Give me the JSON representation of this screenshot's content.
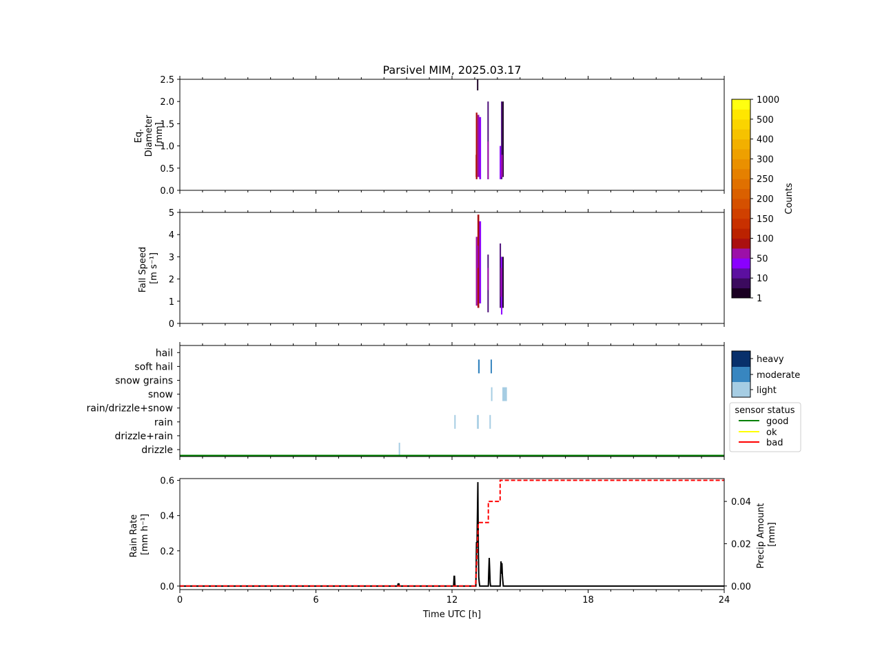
{
  "title": "Parsivel MIM, 2025.03.17",
  "xlabel": "Time UTC [h]",
  "x_ticks": [
    0,
    6,
    12,
    18,
    24
  ],
  "colors": {
    "ptype_light": "#a6cde3",
    "ptype_moderate": "#3886c0",
    "ptype_heavy": "#08306b",
    "status_good": "#008000",
    "status_ok": "#ffff00",
    "status_bad": "#ff0000",
    "rain_rate": "#000000",
    "precip_amount": "#ff0000"
  },
  "colorbar": {
    "label": "Counts",
    "ticks": [
      "1000",
      "500",
      "400",
      "300",
      "250",
      "200",
      "150",
      "100",
      "50",
      "10",
      "1"
    ],
    "colors": [
      "#1a0022",
      "#3b0a5e",
      "#5c0fa0",
      "#8a00ff",
      "#9c10a8",
      "#aa1010",
      "#bb2200",
      "#c83000",
      "#d04000",
      "#d55000",
      "#da6000",
      "#e07000",
      "#e58000",
      "#ea9000",
      "#eea000",
      "#f2b000",
      "#f6c200",
      "#fad400",
      "#ffe600",
      "#ffff10"
    ]
  },
  "ptype_legend": {
    "levels": [
      "heavy",
      "moderate",
      "light"
    ]
  },
  "status_legend": {
    "title": "sensor status",
    "items": [
      "good",
      "ok",
      "bad"
    ]
  },
  "chart_data": [
    {
      "type": "heatmap",
      "name": "diameter",
      "ylabel": [
        "Eq.",
        "Diameter",
        "[mm]"
      ],
      "xlim": [
        0,
        24
      ],
      "ylim": [
        0,
        2.5
      ],
      "y_ticks": [
        "0.0",
        "0.5",
        "1.0",
        "1.5",
        "2.0",
        "2.5"
      ],
      "y_tick_values": [
        0,
        0.5,
        1.0,
        1.5,
        2.0,
        2.5
      ],
      "columns": [
        {
          "t0": 13.05,
          "t1": 13.12,
          "y0": 0.25,
          "y1": 1.75,
          "level": 4
        },
        {
          "t0": 13.12,
          "t1": 13.2,
          "y0": 0.3,
          "y1": 1.7,
          "level": 3
        },
        {
          "t0": 13.2,
          "t1": 13.28,
          "y0": 0.25,
          "y1": 1.65,
          "level": 2
        },
        {
          "t0": 13.04,
          "t1": 13.08,
          "y0": 0.3,
          "y1": 0.8,
          "level": 4
        },
        {
          "t0": 13.1,
          "t1": 13.16,
          "y0": 2.25,
          "y1": 2.5,
          "level": 0
        },
        {
          "t0": 13.56,
          "t1": 13.62,
          "y0": 0.25,
          "y1": 2.0,
          "level": 1
        },
        {
          "t0": 13.56,
          "t1": 13.62,
          "y0": 0.25,
          "y1": 1.1,
          "level": 3
        },
        {
          "t0": 14.1,
          "t1": 14.16,
          "y0": 0.25,
          "y1": 1.0,
          "level": 2
        },
        {
          "t0": 14.16,
          "t1": 14.22,
          "y0": 0.25,
          "y1": 2.0,
          "level": 1
        },
        {
          "t0": 14.22,
          "t1": 14.28,
          "y0": 0.3,
          "y1": 2.0,
          "level": 0
        },
        {
          "t0": 14.16,
          "t1": 14.24,
          "y0": 0.3,
          "y1": 0.8,
          "level": 3
        }
      ]
    },
    {
      "type": "heatmap",
      "name": "fall-speed",
      "ylabel": [
        "Fall Speed",
        "[m s⁻¹]"
      ],
      "xlim": [
        0,
        24
      ],
      "ylim": [
        0,
        5
      ],
      "y_ticks": [
        "0",
        "1",
        "2",
        "3",
        "4",
        "5"
      ],
      "y_tick_values": [
        0,
        1,
        2,
        3,
        4,
        5
      ],
      "columns": [
        {
          "t0": 13.05,
          "t1": 13.12,
          "y0": 0.8,
          "y1": 3.9,
          "level": 3
        },
        {
          "t0": 13.12,
          "t1": 13.2,
          "y0": 0.7,
          "y1": 4.9,
          "level": 4
        },
        {
          "t0": 13.2,
          "t1": 13.28,
          "y0": 0.9,
          "y1": 4.6,
          "level": 2
        },
        {
          "t0": 13.08,
          "t1": 13.16,
          "y0": 2.5,
          "y1": 3.5,
          "level": 3
        },
        {
          "t0": 13.56,
          "t1": 13.62,
          "y0": 0.5,
          "y1": 3.1,
          "level": 1
        },
        {
          "t0": 13.56,
          "t1": 13.62,
          "y0": 1.5,
          "y1": 2.5,
          "level": 3
        },
        {
          "t0": 14.1,
          "t1": 14.16,
          "y0": 0.7,
          "y1": 3.6,
          "level": 1
        },
        {
          "t0": 14.16,
          "t1": 14.22,
          "y0": 0.4,
          "y1": 3.0,
          "level": 2
        },
        {
          "t0": 14.22,
          "t1": 14.28,
          "y0": 0.7,
          "y1": 3.0,
          "level": 0
        },
        {
          "t0": 14.14,
          "t1": 14.2,
          "y0": 1.2,
          "y1": 2.5,
          "level": 3
        }
      ]
    },
    {
      "type": "heatmap",
      "name": "precip-type",
      "categories": [
        "drizzle",
        "drizzle+rain",
        "rain",
        "rain/drizzle+snow",
        "snow",
        "snow grains",
        "soft hail",
        "hail"
      ],
      "xlim": [
        0,
        24
      ],
      "status_line": {
        "status": "good",
        "t0": 0,
        "t1": 24
      },
      "bars": [
        {
          "t": 9.65,
          "cat": "drizzle",
          "level": "light",
          "w": 0.05
        },
        {
          "t": 12.1,
          "cat": "rain",
          "level": "light",
          "w": 0.05
        },
        {
          "t": 13.1,
          "cat": "rain",
          "level": "light",
          "w": 0.08
        },
        {
          "t": 13.65,
          "cat": "rain",
          "level": "light",
          "w": 0.04
        },
        {
          "t": 13.15,
          "cat": "soft hail",
          "level": "moderate",
          "w": 0.07
        },
        {
          "t": 13.7,
          "cat": "soft hail",
          "level": "moderate",
          "w": 0.06
        },
        {
          "t": 13.72,
          "cat": "snow",
          "level": "light",
          "w": 0.06
        },
        {
          "t": 14.22,
          "cat": "snow",
          "level": "light",
          "w": 0.2
        }
      ]
    },
    {
      "type": "line",
      "name": "rain-rate",
      "ylabel": [
        "Rain Rate",
        "[mm h⁻¹]"
      ],
      "y2label": [
        "Precip Amount",
        "[mm]"
      ],
      "xlim": [
        0,
        24
      ],
      "ylim": [
        -0.02,
        0.61
      ],
      "y2lim": [
        -0.0017,
        0.0508
      ],
      "y_ticks": [
        "0.0",
        "0.2",
        "0.4",
        "0.6"
      ],
      "y_tick_values": [
        0,
        0.2,
        0.4,
        0.6
      ],
      "y2_ticks": [
        "0.00",
        "0.02",
        "0.04"
      ],
      "y2_tick_values": [
        0,
        0.02,
        0.04
      ],
      "series": [
        {
          "name": "rain rate",
          "x": [
            0,
            9.6,
            9.62,
            9.66,
            9.68,
            12.07,
            12.09,
            12.11,
            12.13,
            13.05,
            13.08,
            13.1,
            13.14,
            13.16,
            13.18,
            13.2,
            13.22,
            13.6,
            13.62,
            13.64,
            13.66,
            13.68,
            13.7,
            14.12,
            14.14,
            14.16,
            14.18,
            14.2,
            14.22,
            14.24,
            14.26,
            24
          ],
          "y": [
            0,
            0,
            0.012,
            0.012,
            0,
            0,
            0.055,
            0.055,
            0,
            0,
            0.25,
            0.22,
            0.59,
            0.2,
            0.05,
            0.02,
            0,
            0,
            0.08,
            0.16,
            0.1,
            0.02,
            0,
            0,
            0.07,
            0.14,
            0.07,
            0.13,
            0.06,
            0.03,
            0,
            0
          ]
        },
        {
          "name": "precip amount",
          "axis": "right",
          "x": [
            0,
            13.04,
            13.16,
            13.16,
            13.6,
            13.6,
            14.12,
            14.12,
            24
          ],
          "y": [
            0,
            0,
            0.03,
            0.03,
            0.03,
            0.04,
            0.04,
            0.05,
            0.05
          ]
        }
      ]
    }
  ]
}
